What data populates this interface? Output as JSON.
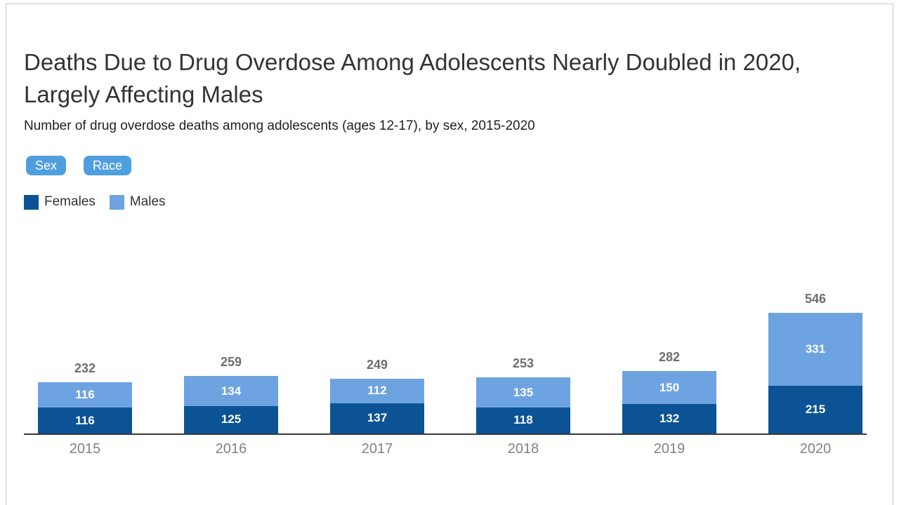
{
  "header": {
    "title": "Deaths Due to Drug Overdose Among Adolescents Nearly Doubled in 2020, Largely Affecting Males",
    "subtitle": "Number of drug overdose deaths among adolescents (ages 12-17), by sex, 2015-2020"
  },
  "filters": [
    {
      "label": "Sex"
    },
    {
      "label": "Race"
    }
  ],
  "legend": [
    {
      "label": "Females",
      "color": "#0b5394"
    },
    {
      "label": "Males",
      "color": "#6ea3e2"
    }
  ],
  "colors": {
    "females": "#0b5394",
    "males": "#6ea3e2",
    "filter_pill": "#4f9fe0",
    "axis": "#3a3a3a",
    "total_label": "#6e6e6e",
    "year_label": "#828282",
    "inside_label": "#ffffff"
  },
  "chart_data": {
    "type": "bar",
    "stacked": true,
    "title": "Deaths Due to Drug Overdose Among Adolescents Nearly Doubled in 2020, Largely Affecting Males",
    "subtitle": "Number of drug overdose deaths among adolescents (ages 12-17), by sex, 2015-2020",
    "categories": [
      "2015",
      "2016",
      "2017",
      "2018",
      "2019",
      "2020"
    ],
    "series": [
      {
        "name": "Females",
        "color": "#0b5394",
        "values": [
          116,
          125,
          137,
          118,
          132,
          215
        ]
      },
      {
        "name": "Males",
        "color": "#6ea3e2",
        "values": [
          116,
          134,
          112,
          135,
          150,
          331
        ]
      }
    ],
    "totals": [
      232,
      259,
      249,
      253,
      282,
      546
    ],
    "xlabel": "",
    "ylabel": "",
    "ylim": [
      0,
      560
    ],
    "grid": false,
    "legend_position": "top-left",
    "value_labels": "inside-white",
    "total_labels": "above-gray"
  }
}
